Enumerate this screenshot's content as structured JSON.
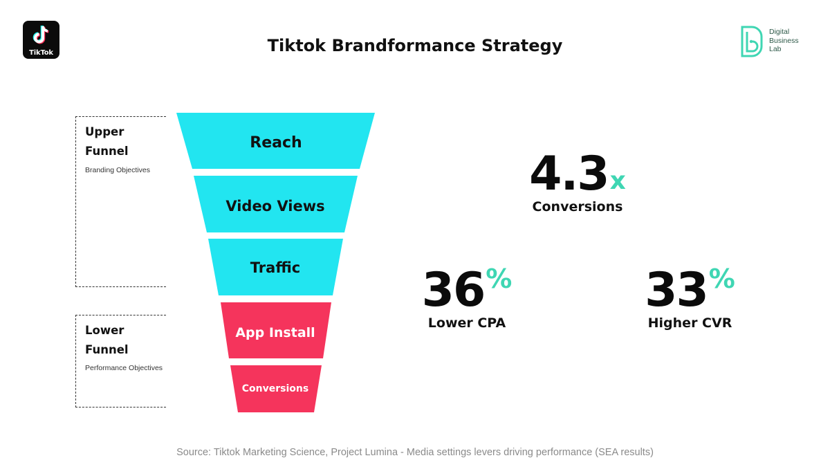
{
  "title": "Tiktok Brandformance Strategy",
  "logos": {
    "tiktok_word": "TikTok",
    "dbl_lines": [
      "Digital",
      "Business",
      "Lab"
    ]
  },
  "colors": {
    "upper_funnel": "#22e5f0",
    "lower_funnel": "#f5345c",
    "accent": "#3fd6b3",
    "text": "#111111"
  },
  "brackets": {
    "upper": {
      "title_line1": "Upper",
      "title_line2": "Funnel",
      "subtitle": "Branding Objectives"
    },
    "lower": {
      "title_line1": "Lower",
      "title_line2": "Funnel",
      "subtitle": "Performance Objectives"
    }
  },
  "funnel": [
    {
      "label": "Reach",
      "stage": "upper"
    },
    {
      "label": "Video Views",
      "stage": "upper"
    },
    {
      "label": "Traffic",
      "stage": "upper"
    },
    {
      "label": "App Install",
      "stage": "lower"
    },
    {
      "label": "Conversions",
      "stage": "lower"
    }
  ],
  "stats": {
    "conversions": {
      "value": "4.3",
      "suffix": "x",
      "label": "Conversions"
    },
    "cpa": {
      "value": "36",
      "suffix": "%",
      "label": "Lower CPA"
    },
    "cvr": {
      "value": "33",
      "suffix": "%",
      "label": "Higher CVR"
    }
  },
  "source": "Source: Tiktok Marketing Science, Project Lumina - Media settings levers driving performance (SEA results)"
}
